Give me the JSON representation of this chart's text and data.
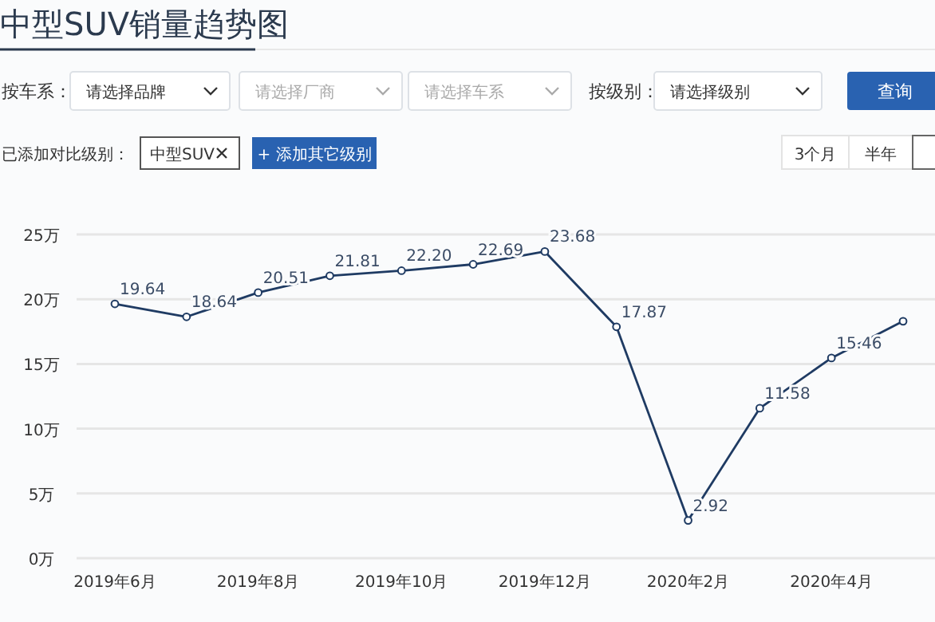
{
  "chart_data": {
    "type": "line",
    "title": "中型SUV销量趋势图",
    "categories": [
      "2019年6月",
      null,
      "2019年8月",
      null,
      "2019年10月",
      null,
      "2019年12月",
      null,
      "2020年2月",
      null,
      "2020年4月",
      null
    ],
    "series": [
      {
        "color": "#1f3b63",
        "values": [
          19.64,
          18.64,
          20.51,
          21.81,
          22.2,
          22.69,
          23.68,
          17.87,
          2.92,
          11.58,
          15.46,
          18.3
        ],
        "value_labels": [
          "19.64",
          "18.64",
          "20.51",
          "21.81",
          "22.20",
          "22.69",
          "23.68",
          "17.87",
          "2.92",
          "11.58",
          "15.46",
          null
        ]
      }
    ],
    "ylim": [
      0,
      25
    ],
    "yticks": [
      {
        "value": 0,
        "label": "0万"
      },
      {
        "value": 5,
        "label": "5万"
      },
      {
        "value": 10,
        "label": "10万"
      },
      {
        "value": 15,
        "label": "15万"
      },
      {
        "value": 20,
        "label": "20万"
      },
      {
        "value": 25,
        "label": "25万"
      }
    ],
    "grid": "y",
    "marker": "circle",
    "line_style": "solid",
    "annotations": [
      "按车系：",
      "请选择品牌",
      "请选择厂商",
      "请选择车系",
      "按级别：",
      "请选择级别",
      "查询",
      "已添加对比级别：",
      "中型SUV",
      "+ 添加其它级别",
      "3个月",
      "半年"
    ]
  }
}
